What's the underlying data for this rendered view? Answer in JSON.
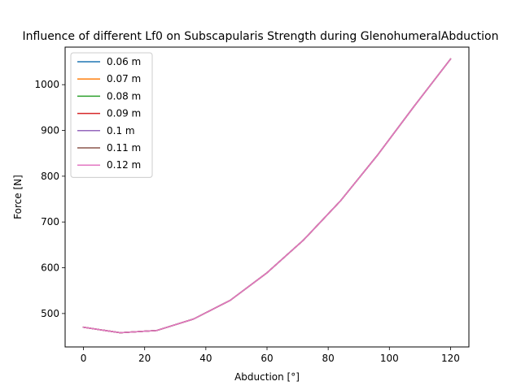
{
  "chart_data": {
    "type": "line",
    "title": "Influence of different Lf0 on Subscapularis Strength during GlenohumeralAbduction",
    "xlabel": "Abduction [°]",
    "ylabel": "Force [N]",
    "xlim": [
      -6,
      126
    ],
    "ylim": [
      427,
      1082
    ],
    "xticks": [
      0,
      20,
      40,
      60,
      80,
      100,
      120
    ],
    "yticks": [
      500,
      600,
      700,
      800,
      900,
      1000
    ],
    "xtick_labels": [
      "0",
      "20",
      "40",
      "60",
      "80",
      "100",
      "120"
    ],
    "ytick_labels": [
      "500",
      "600",
      "700",
      "800",
      "900",
      "1000"
    ],
    "grid": false,
    "legend_position": "top-left",
    "x": [
      0,
      12,
      24,
      36,
      48,
      60,
      72,
      84,
      96,
      108,
      120
    ],
    "series": [
      {
        "name": "0.06 m",
        "color": "#1f77b4",
        "values": [
          470,
          458,
          463,
          488,
          529,
          589,
          661,
          746,
          845,
          952,
          1056
        ]
      },
      {
        "name": "0.07 m",
        "color": "#ff7f0e",
        "values": [
          470,
          458,
          463,
          488,
          529,
          589,
          661,
          746,
          845,
          952,
          1056
        ]
      },
      {
        "name": "0.08 m",
        "color": "#2ca02c",
        "values": [
          470,
          458,
          463,
          488,
          529,
          589,
          661,
          746,
          845,
          952,
          1056
        ]
      },
      {
        "name": "0.09 m",
        "color": "#d62728",
        "values": [
          470,
          458,
          463,
          488,
          529,
          589,
          661,
          746,
          845,
          952,
          1056
        ]
      },
      {
        "name": "0.1 m",
        "color": "#9467bd",
        "values": [
          470,
          458,
          463,
          488,
          529,
          589,
          661,
          746,
          845,
          952,
          1056
        ]
      },
      {
        "name": "0.11 m",
        "color": "#8c564b",
        "values": [
          470,
          458,
          463,
          488,
          529,
          589,
          661,
          746,
          845,
          952,
          1056
        ]
      },
      {
        "name": "0.12 m",
        "color": "#e377c2",
        "values": [
          470,
          458,
          463,
          488,
          529,
          589,
          661,
          746,
          845,
          952,
          1056
        ]
      }
    ]
  }
}
